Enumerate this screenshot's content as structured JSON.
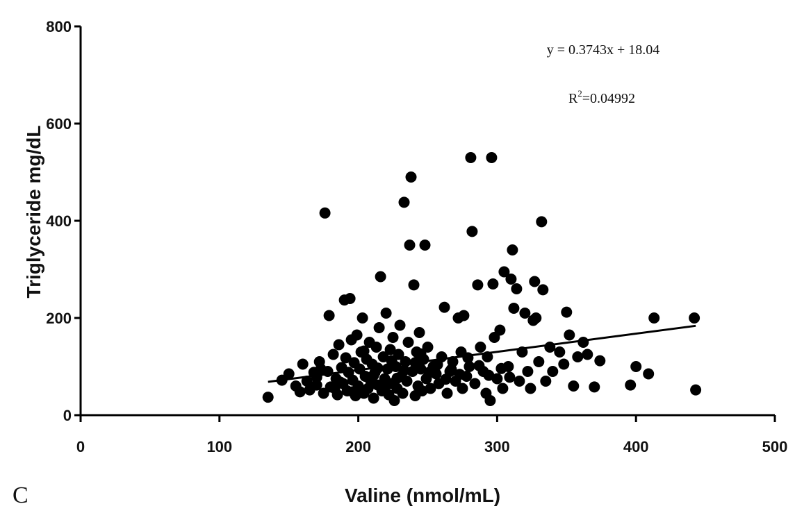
{
  "chart_data": {
    "type": "scatter",
    "xlabel": "Valine (nmol/mL)",
    "ylabel": "Triglyceride mg/dL",
    "xlim": [
      0,
      500
    ],
    "ylim": [
      0,
      800
    ],
    "xticks": [
      0,
      100,
      200,
      300,
      400,
      500
    ],
    "yticks": [
      0,
      200,
      400,
      600,
      800
    ],
    "grid": false,
    "legend": "none",
    "panel_label": "C",
    "equation": "y = 0.3743x + 18.04",
    "r2_prefix": "R",
    "r2_exp": "2",
    "r2_value": "=0.04992",
    "trendline": {
      "slope": 0.3743,
      "intercept": 18.04,
      "x_start": 135,
      "x_end": 443
    },
    "colors": {
      "points": "#000000",
      "axes": "#000000",
      "line": "#000000",
      "background": "#ffffff"
    },
    "points": [
      [
        135,
        37
      ],
      [
        145,
        72
      ],
      [
        150,
        85
      ],
      [
        155,
        60
      ],
      [
        158,
        48
      ],
      [
        160,
        105
      ],
      [
        163,
        70
      ],
      [
        165,
        52
      ],
      [
        168,
        88
      ],
      [
        170,
        62
      ],
      [
        172,
        110
      ],
      [
        175,
        45
      ],
      [
        176,
        416
      ],
      [
        178,
        90
      ],
      [
        179,
        205
      ],
      [
        180,
        58
      ],
      [
        182,
        125
      ],
      [
        184,
        75
      ],
      [
        185,
        42
      ],
      [
        186,
        145
      ],
      [
        188,
        98
      ],
      [
        189,
        65
      ],
      [
        190,
        237
      ],
      [
        191,
        118
      ],
      [
        192,
        50
      ],
      [
        193,
        88
      ],
      [
        194,
        240
      ],
      [
        195,
        155
      ],
      [
        196,
        72
      ],
      [
        197,
        108
      ],
      [
        198,
        40
      ],
      [
        199,
        165
      ],
      [
        200,
        60
      ],
      [
        201,
        95
      ],
      [
        202,
        130
      ],
      [
        203,
        200
      ],
      [
        204,
        45
      ],
      [
        205,
        80
      ],
      [
        206,
        115
      ],
      [
        207,
        55
      ],
      [
        208,
        150
      ],
      [
        209,
        70
      ],
      [
        210,
        105
      ],
      [
        211,
        35
      ],
      [
        212,
        88
      ],
      [
        213,
        140
      ],
      [
        214,
        62
      ],
      [
        215,
        180
      ],
      [
        216,
        285
      ],
      [
        217,
        50
      ],
      [
        218,
        120
      ],
      [
        219,
        75
      ],
      [
        220,
        210
      ],
      [
        221,
        95
      ],
      [
        222,
        42
      ],
      [
        223,
        135
      ],
      [
        224,
        65
      ],
      [
        225,
        160
      ],
      [
        226,
        30
      ],
      [
        227,
        100
      ],
      [
        228,
        55
      ],
      [
        229,
        125
      ],
      [
        230,
        185
      ],
      [
        231,
        80
      ],
      [
        232,
        45
      ],
      [
        233,
        438
      ],
      [
        234,
        110
      ],
      [
        235,
        70
      ],
      [
        236,
        150
      ],
      [
        237,
        350
      ],
      [
        238,
        490
      ],
      [
        239,
        90
      ],
      [
        240,
        268
      ],
      [
        241,
        40
      ],
      [
        242,
        130
      ],
      [
        243,
        60
      ],
      [
        244,
        170
      ],
      [
        245,
        95
      ],
      [
        246,
        50
      ],
      [
        247,
        115
      ],
      [
        248,
        350
      ],
      [
        249,
        75
      ],
      [
        250,
        140
      ],
      [
        252,
        55
      ],
      [
        254,
        100
      ],
      [
        256,
        85
      ],
      [
        258,
        65
      ],
      [
        260,
        120
      ],
      [
        262,
        222
      ],
      [
        264,
        45
      ],
      [
        266,
        90
      ],
      [
        268,
        110
      ],
      [
        270,
        70
      ],
      [
        272,
        200
      ],
      [
        274,
        130
      ],
      [
        275,
        55
      ],
      [
        276,
        205
      ],
      [
        278,
        80
      ],
      [
        280,
        100
      ],
      [
        281,
        530
      ],
      [
        282,
        378
      ],
      [
        284,
        65
      ],
      [
        286,
        268
      ],
      [
        288,
        140
      ],
      [
        290,
        90
      ],
      [
        292,
        45
      ],
      [
        293,
        120
      ],
      [
        295,
        30
      ],
      [
        296,
        530
      ],
      [
        297,
        270
      ],
      [
        298,
        160
      ],
      [
        300,
        75
      ],
      [
        302,
        175
      ],
      [
        304,
        55
      ],
      [
        305,
        295
      ],
      [
        308,
        100
      ],
      [
        310,
        280
      ],
      [
        311,
        340
      ],
      [
        312,
        220
      ],
      [
        314,
        260
      ],
      [
        316,
        70
      ],
      [
        318,
        130
      ],
      [
        320,
        210
      ],
      [
        322,
        90
      ],
      [
        324,
        55
      ],
      [
        326,
        195
      ],
      [
        327,
        275
      ],
      [
        328,
        200
      ],
      [
        330,
        110
      ],
      [
        332,
        398
      ],
      [
        333,
        258
      ],
      [
        335,
        70
      ],
      [
        338,
        140
      ],
      [
        340,
        90
      ],
      [
        345,
        130
      ],
      [
        348,
        105
      ],
      [
        350,
        212
      ],
      [
        352,
        165
      ],
      [
        355,
        60
      ],
      [
        358,
        120
      ],
      [
        362,
        150
      ],
      [
        365,
        125
      ],
      [
        370,
        58
      ],
      [
        374,
        112
      ],
      [
        396,
        62
      ],
      [
        400,
        100
      ],
      [
        409,
        85
      ],
      [
        413,
        200
      ],
      [
        442,
        200
      ],
      [
        443,
        52
      ],
      [
        170,
        78
      ],
      [
        173,
        95
      ],
      [
        183,
        55
      ],
      [
        187,
        68
      ],
      [
        196,
        48
      ],
      [
        204,
        132
      ],
      [
        211,
        82
      ],
      [
        214,
        97
      ],
      [
        219,
        58
      ],
      [
        224,
        112
      ],
      [
        228,
        76
      ],
      [
        233,
        92
      ],
      [
        241,
        108
      ],
      [
        245,
        126
      ],
      [
        251,
        88
      ],
      [
        257,
        104
      ],
      [
        263,
        74
      ],
      [
        267,
        94
      ],
      [
        273,
        84
      ],
      [
        279,
        118
      ],
      [
        287,
        102
      ],
      [
        294,
        82
      ],
      [
        303,
        96
      ],
      [
        309,
        78
      ]
    ]
  }
}
